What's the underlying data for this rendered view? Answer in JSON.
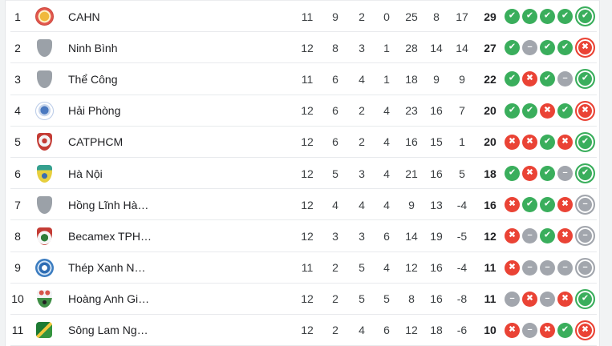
{
  "widget": {
    "type": "league-standings-table",
    "page_background": "#f1f3f4",
    "card_background": "#ffffff"
  },
  "colors": {
    "win": "#3aae5c",
    "draw": "#a2a6ad",
    "loss": "#ea4335",
    "text": "#202124",
    "stat_text": "#3c4043",
    "divider": "#e8eaed"
  },
  "form_glyphs": {
    "w": "✔",
    "d": "–",
    "l": "✖"
  },
  "form_icon_names": {
    "w": "form-win-icon",
    "d": "form-draw-icon",
    "l": "form-loss-icon"
  },
  "table": {
    "rows": [
      {
        "rank": "1",
        "team": "CAHN",
        "logo": "cahn",
        "logo_icon": "cahn-crest-red-gold",
        "played": "11",
        "won": "9",
        "drawn": "2",
        "lost": "0",
        "gf": "25",
        "ga": "8",
        "gd": "17",
        "points": "29",
        "form": [
          "w",
          "w",
          "w",
          "w",
          "w"
        ]
      },
      {
        "rank": "2",
        "team": "Ninh Bình",
        "logo": "shield",
        "logo_icon": "generic-gray-shield",
        "played": "12",
        "won": "8",
        "drawn": "3",
        "lost": "1",
        "gf": "28",
        "ga": "14",
        "gd": "14",
        "points": "27",
        "form": [
          "w",
          "d",
          "w",
          "w",
          "l"
        ]
      },
      {
        "rank": "3",
        "team": "Thể Công",
        "logo": "shield",
        "logo_icon": "generic-gray-shield",
        "played": "11",
        "won": "6",
        "drawn": "4",
        "lost": "1",
        "gf": "18",
        "ga": "9",
        "gd": "9",
        "points": "22",
        "form": [
          "w",
          "l",
          "w",
          "d",
          "w"
        ]
      },
      {
        "rank": "4",
        "team": "Hải Phòng",
        "logo": "haiphong",
        "logo_icon": "haiphong-blue-circle-crest",
        "played": "12",
        "won": "6",
        "drawn": "2",
        "lost": "4",
        "gf": "23",
        "ga": "16",
        "gd": "7",
        "points": "20",
        "form": [
          "w",
          "w",
          "l",
          "w",
          "l"
        ]
      },
      {
        "rank": "5",
        "team": "CATPHCM",
        "logo": "catphcm",
        "logo_icon": "catphcm-red-shield-crest",
        "played": "12",
        "won": "6",
        "drawn": "2",
        "lost": "4",
        "gf": "16",
        "ga": "15",
        "gd": "1",
        "points": "20",
        "form": [
          "l",
          "l",
          "w",
          "l",
          "w"
        ]
      },
      {
        "rank": "6",
        "team": "Hà Nội",
        "logo": "hanoi",
        "logo_icon": "hanoi-yellow-blue-shield-crest",
        "played": "12",
        "won": "5",
        "drawn": "3",
        "lost": "4",
        "gf": "21",
        "ga": "16",
        "gd": "5",
        "points": "18",
        "form": [
          "w",
          "l",
          "w",
          "d",
          "w"
        ]
      },
      {
        "rank": "7",
        "team": "Hồng Lĩnh Hà…",
        "logo": "shield",
        "logo_icon": "generic-gray-shield",
        "played": "12",
        "won": "4",
        "drawn": "4",
        "lost": "4",
        "gf": "9",
        "ga": "13",
        "gd": "-4",
        "points": "16",
        "form": [
          "l",
          "w",
          "w",
          "l",
          "d"
        ]
      },
      {
        "rank": "8",
        "team": "Becamex TPH…",
        "logo": "becamex",
        "logo_icon": "becamex-red-green-shield-crest",
        "played": "12",
        "won": "3",
        "drawn": "3",
        "lost": "6",
        "gf": "14",
        "ga": "19",
        "gd": "-5",
        "points": "12",
        "form": [
          "l",
          "d",
          "w",
          "l",
          "d"
        ]
      },
      {
        "rank": "9",
        "team": "Thép Xanh N…",
        "logo": "thepxanh",
        "logo_icon": "thepxanh-blue-circle-crest",
        "played": "11",
        "won": "2",
        "drawn": "5",
        "lost": "4",
        "gf": "12",
        "ga": "16",
        "gd": "-4",
        "points": "11",
        "form": [
          "l",
          "d",
          "d",
          "d",
          "d"
        ]
      },
      {
        "rank": "10",
        "team": "Hoàng Anh Gi…",
        "logo": "hagl",
        "logo_icon": "hagl-mountain-shield-crest",
        "played": "12",
        "won": "2",
        "drawn": "5",
        "lost": "5",
        "gf": "8",
        "ga": "16",
        "gd": "-8",
        "points": "11",
        "form": [
          "d",
          "l",
          "d",
          "l",
          "w"
        ]
      },
      {
        "rank": "11",
        "team": "Sông Lam Ng…",
        "logo": "slna",
        "logo_icon": "slna-green-yellow-crest",
        "played": "12",
        "won": "2",
        "drawn": "4",
        "lost": "6",
        "gf": "12",
        "ga": "18",
        "gd": "-6",
        "points": "10",
        "form": [
          "l",
          "d",
          "l",
          "w",
          "l"
        ]
      }
    ]
  }
}
